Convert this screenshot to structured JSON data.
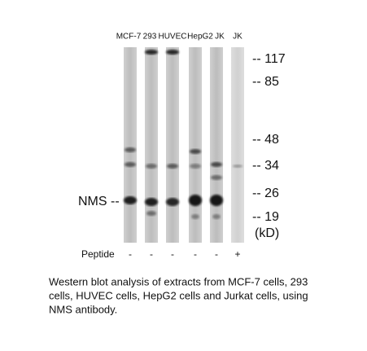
{
  "lanes": [
    "MCF-7",
    "293",
    "HUVEC",
    "HepG2",
    "JK",
    "JK"
  ],
  "markers": [
    "-- 117",
    "-- 85",
    "-- 48",
    "-- 34",
    "-- 26",
    "-- 19",
    "(kD)"
  ],
  "protein_label": "NMS --",
  "peptide": {
    "label": "Peptide",
    "signs": [
      "-",
      "-",
      "-",
      "-",
      "-",
      "+"
    ]
  },
  "caption": [
    "Western blot analysis of extracts from MCF-7 cells, 293",
    "cells, HUVEC cells, HepG2 cells and Jurkat cells, using",
    "NMS antibody."
  ]
}
